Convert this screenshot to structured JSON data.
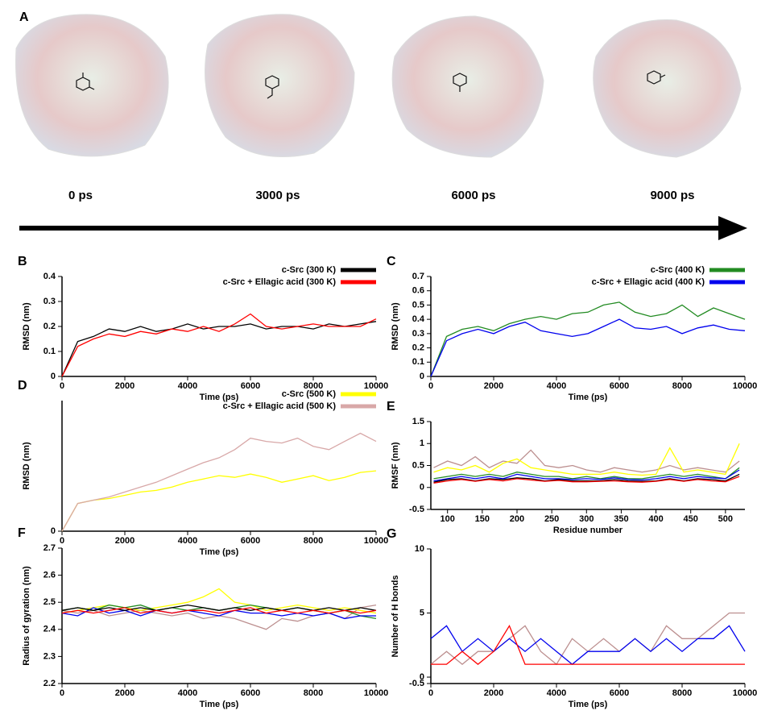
{
  "panel_a": {
    "panel": "A",
    "times": [
      "0 ps",
      "3000 ps",
      "6000 ps",
      "9000 ps"
    ]
  },
  "chart_data": [
    {
      "type": "line",
      "panel": "B",
      "ylabel": "RMSD (nm)",
      "xlabel": "Time (ps)",
      "xlim": [
        0,
        10000
      ],
      "xticks": [
        0,
        2000,
        4000,
        6000,
        8000,
        10000
      ],
      "ylim": [
        0,
        0.4
      ],
      "yticks": [
        0,
        0.1,
        0.2,
        0.3,
        0.4
      ],
      "legend": "upper right",
      "x": [
        0,
        500,
        1000,
        1500,
        2000,
        2500,
        3000,
        3500,
        4000,
        4500,
        5000,
        5500,
        6000,
        6500,
        7000,
        7500,
        8000,
        8500,
        9000,
        9500,
        10000
      ],
      "series": [
        {
          "name": "c-Src (300 K)",
          "color": "#000000",
          "values": [
            0,
            0.14,
            0.16,
            0.19,
            0.18,
            0.2,
            0.18,
            0.19,
            0.21,
            0.19,
            0.2,
            0.2,
            0.21,
            0.19,
            0.2,
            0.2,
            0.19,
            0.21,
            0.2,
            0.21,
            0.22
          ]
        },
        {
          "name": "c-Src + Ellagic acid (300 K)",
          "color": "#ff0000",
          "values": [
            0,
            0.12,
            0.15,
            0.17,
            0.16,
            0.18,
            0.17,
            0.19,
            0.18,
            0.2,
            0.18,
            0.21,
            0.25,
            0.2,
            0.19,
            0.2,
            0.21,
            0.2,
            0.2,
            0.2,
            0.23
          ]
        }
      ]
    },
    {
      "type": "line",
      "panel": "C",
      "ylabel": "RMSD (nm)",
      "xlabel": "Time (ps)",
      "xlim": [
        0,
        10000
      ],
      "xticks": [
        0,
        2000,
        4000,
        6000,
        8000,
        10000
      ],
      "ylim": [
        0,
        0.7
      ],
      "yticks": [
        0,
        0.1,
        0.2,
        0.3,
        0.4,
        0.5,
        0.6,
        0.7
      ],
      "legend": "upper right",
      "x": [
        0,
        500,
        1000,
        1500,
        2000,
        2500,
        3000,
        3500,
        4000,
        4500,
        5000,
        5500,
        6000,
        6500,
        7000,
        7500,
        8000,
        8500,
        9000,
        9500,
        10000
      ],
      "series": [
        {
          "name": "c-Src (400 K)",
          "color": "#228b22",
          "values": [
            0,
            0.28,
            0.33,
            0.35,
            0.32,
            0.37,
            0.4,
            0.42,
            0.4,
            0.44,
            0.45,
            0.5,
            0.52,
            0.45,
            0.42,
            0.44,
            0.5,
            0.42,
            0.48,
            0.44,
            0.4
          ]
        },
        {
          "name": "c-Src + Ellagic acid (400 K)",
          "color": "#0000ee",
          "values": [
            0,
            0.25,
            0.3,
            0.33,
            0.3,
            0.35,
            0.38,
            0.32,
            0.3,
            0.28,
            0.3,
            0.35,
            0.4,
            0.34,
            0.33,
            0.35,
            0.3,
            0.34,
            0.36,
            0.33,
            0.32
          ]
        }
      ]
    },
    {
      "type": "line",
      "panel": "D",
      "ylabel": "RMSD (nm)",
      "xlabel": "Time (ps)",
      "xlim": [
        0,
        10000
      ],
      "xticks": [
        0,
        2000,
        4000,
        6000,
        8000,
        10000
      ],
      "ylim": [
        0,
        0.8
      ],
      "yticks": [
        0
      ],
      "legend": "upper right",
      "x": [
        0,
        500,
        1000,
        1500,
        2000,
        2500,
        3000,
        3500,
        4000,
        4500,
        5000,
        5500,
        6000,
        6500,
        7000,
        7500,
        8000,
        8500,
        9000,
        9500,
        10000
      ],
      "series": [
        {
          "name": "c-Src (500 K)",
          "color": "#ffff00",
          "values": [
            0,
            0.17,
            0.19,
            0.2,
            0.22,
            0.24,
            0.25,
            0.27,
            0.3,
            0.32,
            0.34,
            0.33,
            0.35,
            0.33,
            0.3,
            0.32,
            0.34,
            0.31,
            0.33,
            0.36,
            0.37
          ]
        },
        {
          "name": "c-Src + Ellagic acid (500 K)",
          "color": "#d8a8a8",
          "values": [
            0,
            0.17,
            0.19,
            0.21,
            0.24,
            0.27,
            0.3,
            0.34,
            0.38,
            0.42,
            0.45,
            0.5,
            0.57,
            0.55,
            0.54,
            0.57,
            0.52,
            0.5,
            0.55,
            0.6,
            0.55
          ]
        }
      ]
    },
    {
      "type": "line",
      "panel": "E",
      "ylabel": "RMSF (nm)",
      "xlabel": "Residue number",
      "xlim": [
        76,
        528
      ],
      "xticks": [
        100,
        150,
        200,
        250,
        300,
        350,
        400,
        450,
        500
      ],
      "ylim": [
        -0.5,
        1.5
      ],
      "yticks": [
        -0.5,
        0,
        0.5,
        1,
        1.5
      ],
      "x": [
        80,
        100,
        120,
        140,
        160,
        180,
        200,
        220,
        240,
        260,
        280,
        300,
        320,
        340,
        360,
        380,
        400,
        420,
        440,
        460,
        480,
        500,
        520
      ],
      "series": [
        {
          "color": "#bc8f8f",
          "values": [
            0.45,
            0.6,
            0.5,
            0.7,
            0.45,
            0.6,
            0.55,
            0.85,
            0.5,
            0.45,
            0.5,
            0.4,
            0.35,
            0.45,
            0.4,
            0.35,
            0.4,
            0.5,
            0.4,
            0.45,
            0.4,
            0.35,
            0.6
          ]
        },
        {
          "color": "#ffff00",
          "values": [
            0.35,
            0.45,
            0.4,
            0.5,
            0.35,
            0.55,
            0.65,
            0.45,
            0.4,
            0.35,
            0.3,
            0.3,
            0.3,
            0.35,
            0.3,
            0.28,
            0.3,
            0.9,
            0.35,
            0.4,
            0.35,
            0.3,
            1
          ]
        },
        {
          "color": "#228b22",
          "values": [
            0.2,
            0.25,
            0.3,
            0.25,
            0.3,
            0.25,
            0.35,
            0.3,
            0.25,
            0.25,
            0.2,
            0.25,
            0.2,
            0.25,
            0.2,
            0.2,
            0.25,
            0.3,
            0.25,
            0.3,
            0.25,
            0.2,
            0.45
          ]
        },
        {
          "color": "#0000ee",
          "values": [
            0.15,
            0.2,
            0.25,
            0.2,
            0.25,
            0.2,
            0.3,
            0.25,
            0.2,
            0.2,
            0.18,
            0.2,
            0.18,
            0.22,
            0.18,
            0.17,
            0.2,
            0.25,
            0.2,
            0.25,
            0.22,
            0.2,
            0.4
          ]
        },
        {
          "color": "#000000",
          "values": [
            0.12,
            0.18,
            0.2,
            0.15,
            0.2,
            0.18,
            0.22,
            0.2,
            0.15,
            0.18,
            0.15,
            0.15,
            0.15,
            0.18,
            0.15,
            0.14,
            0.15,
            0.2,
            0.15,
            0.2,
            0.18,
            0.15,
            0.3
          ]
        },
        {
          "color": "#ff0000",
          "values": [
            0.1,
            0.15,
            0.18,
            0.14,
            0.18,
            0.15,
            0.2,
            0.17,
            0.14,
            0.16,
            0.13,
            0.13,
            0.14,
            0.15,
            0.13,
            0.12,
            0.14,
            0.18,
            0.14,
            0.18,
            0.15,
            0.13,
            0.25
          ]
        }
      ]
    },
    {
      "type": "line",
      "panel": "F",
      "ylabel": "Radius of gyration (nm)",
      "xlabel": "Time (ps)",
      "xlim": [
        0,
        10000
      ],
      "xticks": [
        0,
        2000,
        4000,
        6000,
        8000,
        10000
      ],
      "ylim": [
        2.2,
        2.7
      ],
      "yticks": [
        2.2,
        2.3,
        2.4,
        2.5,
        2.6,
        2.7
      ],
      "x": [
        0,
        500,
        1000,
        1500,
        2000,
        2500,
        3000,
        3500,
        4000,
        4500,
        5000,
        5500,
        6000,
        6500,
        7000,
        7500,
        8000,
        8500,
        9000,
        9500,
        10000
      ],
      "series": [
        {
          "color": "#bc8f8f",
          "values": [
            2.47,
            2.46,
            2.47,
            2.45,
            2.46,
            2.47,
            2.46,
            2.45,
            2.46,
            2.44,
            2.45,
            2.44,
            2.42,
            2.4,
            2.44,
            2.43,
            2.45,
            2.46,
            2.44,
            2.48,
            2.49
          ]
        },
        {
          "color": "#ffff00",
          "values": [
            2.46,
            2.47,
            2.48,
            2.49,
            2.48,
            2.47,
            2.48,
            2.49,
            2.5,
            2.52,
            2.55,
            2.5,
            2.49,
            2.47,
            2.48,
            2.49,
            2.48,
            2.47,
            2.48,
            2.47,
            2.46
          ]
        },
        {
          "color": "#228b22",
          "values": [
            2.47,
            2.48,
            2.47,
            2.49,
            2.48,
            2.49,
            2.47,
            2.48,
            2.47,
            2.48,
            2.47,
            2.48,
            2.49,
            2.48,
            2.47,
            2.48,
            2.47,
            2.46,
            2.47,
            2.45,
            2.44
          ]
        },
        {
          "color": "#0000ee",
          "values": [
            2.46,
            2.45,
            2.48,
            2.46,
            2.47,
            2.45,
            2.47,
            2.46,
            2.47,
            2.46,
            2.45,
            2.47,
            2.46,
            2.46,
            2.45,
            2.46,
            2.45,
            2.46,
            2.44,
            2.45,
            2.45
          ]
        },
        {
          "color": "#000000",
          "values": [
            2.47,
            2.48,
            2.47,
            2.48,
            2.47,
            2.48,
            2.47,
            2.48,
            2.49,
            2.48,
            2.47,
            2.48,
            2.47,
            2.48,
            2.47,
            2.48,
            2.47,
            2.48,
            2.47,
            2.48,
            2.47
          ]
        },
        {
          "color": "#ff0000",
          "values": [
            2.46,
            2.47,
            2.46,
            2.47,
            2.48,
            2.46,
            2.47,
            2.46,
            2.47,
            2.47,
            2.46,
            2.47,
            2.48,
            2.46,
            2.47,
            2.46,
            2.47,
            2.46,
            2.47,
            2.46,
            2.47
          ]
        }
      ]
    },
    {
      "type": "line",
      "panel": "G",
      "ylabel": "Number of H bonds",
      "xlabel": "Time (ps)",
      "xlim": [
        0,
        10000
      ],
      "xticks": [
        0,
        2000,
        4000,
        6000,
        8000,
        10000
      ],
      "ylim": [
        -0.5,
        10
      ],
      "yticks": [
        -0.5,
        0,
        5,
        10
      ],
      "x": [
        0,
        500,
        1000,
        1500,
        2000,
        2500,
        3000,
        3500,
        4000,
        4500,
        5000,
        5500,
        6000,
        6500,
        7000,
        7500,
        8000,
        8500,
        9000,
        9500,
        10000
      ],
      "series": [
        {
          "color": "#bc8f8f",
          "values": [
            1,
            2,
            1,
            2,
            2,
            3,
            4,
            2,
            1,
            3,
            2,
            3,
            2,
            3,
            2,
            4,
            3,
            3,
            4,
            5,
            5
          ]
        },
        {
          "color": "#0000ee",
          "values": [
            3,
            4,
            2,
            3,
            2,
            3,
            2,
            3,
            2,
            1,
            2,
            2,
            2,
            3,
            2,
            3,
            2,
            3,
            3,
            4,
            2
          ]
        },
        {
          "color": "#ff0000",
          "values": [
            1,
            1,
            2,
            1,
            2,
            4,
            1,
            1,
            1,
            1,
            1,
            1,
            1,
            1,
            1,
            1,
            1,
            1,
            1,
            1,
            1
          ]
        }
      ]
    }
  ]
}
